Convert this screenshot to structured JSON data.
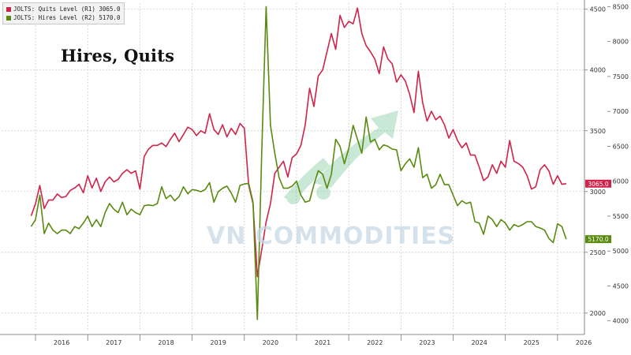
{
  "headline": "Hires, Quits",
  "watermark": "VN COMMODITIES",
  "legend": [
    {
      "label": "JOLTS: Quits Level (R1) 3065.0",
      "color": "#d0234a"
    },
    {
      "label": "JOLTS: Hires Level (R2) 5170.0",
      "color": "#5a8a10"
    }
  ],
  "chart_data": {
    "type": "line",
    "x_ticks": [
      "2016",
      "2017",
      "2018",
      "2019",
      "2020",
      "2021",
      "2022",
      "2023",
      "2024",
      "2025",
      "2026"
    ],
    "axes": {
      "r1": {
        "label": "R1",
        "ylim": [
          1850,
          4550
        ],
        "ticks": [
          2000,
          2500,
          3000,
          3500,
          4000,
          4500
        ]
      },
      "r2": {
        "label": "R2",
        "ylim": [
          3850,
          8550
        ],
        "ticks": [
          4000,
          4500,
          5000,
          5500,
          6000,
          6500,
          7000,
          7500,
          8000,
          8500
        ]
      }
    },
    "series": [
      {
        "name": "JOLTS: Quits Level",
        "axis": "r1",
        "color": "#d0234a",
        "last_value": 3065.0,
        "points": [
          [
            "2015-12",
            2800
          ],
          [
            "2016-01",
            2900
          ],
          [
            "2016-02",
            3050
          ],
          [
            "2016-03",
            2860
          ],
          [
            "2016-04",
            2930
          ],
          [
            "2016-05",
            2930
          ],
          [
            "2016-06",
            2980
          ],
          [
            "2016-07",
            2950
          ],
          [
            "2016-08",
            2960
          ],
          [
            "2016-09",
            3010
          ],
          [
            "2016-10",
            3030
          ],
          [
            "2016-11",
            3060
          ],
          [
            "2016-12",
            2990
          ],
          [
            "2017-01",
            3130
          ],
          [
            "2017-02",
            3030
          ],
          [
            "2017-03",
            3110
          ],
          [
            "2017-04",
            3000
          ],
          [
            "2017-05",
            3080
          ],
          [
            "2017-06",
            3120
          ],
          [
            "2017-07",
            3080
          ],
          [
            "2017-08",
            3100
          ],
          [
            "2017-09",
            3150
          ],
          [
            "2017-10",
            3180
          ],
          [
            "2017-11",
            3150
          ],
          [
            "2017-12",
            3170
          ],
          [
            "2018-01",
            3020
          ],
          [
            "2018-02",
            3290
          ],
          [
            "2018-03",
            3350
          ],
          [
            "2018-04",
            3380
          ],
          [
            "2018-05",
            3380
          ],
          [
            "2018-06",
            3400
          ],
          [
            "2018-07",
            3370
          ],
          [
            "2018-08",
            3430
          ],
          [
            "2018-09",
            3480
          ],
          [
            "2018-10",
            3410
          ],
          [
            "2018-11",
            3470
          ],
          [
            "2018-12",
            3530
          ],
          [
            "2019-01",
            3510
          ],
          [
            "2019-02",
            3460
          ],
          [
            "2019-03",
            3500
          ],
          [
            "2019-04",
            3480
          ],
          [
            "2019-05",
            3640
          ],
          [
            "2019-06",
            3510
          ],
          [
            "2019-07",
            3470
          ],
          [
            "2019-08",
            3550
          ],
          [
            "2019-09",
            3450
          ],
          [
            "2019-10",
            3520
          ],
          [
            "2019-11",
            3470
          ],
          [
            "2019-12",
            3560
          ],
          [
            "2020-01",
            3520
          ],
          [
            "2020-02",
            3050
          ],
          [
            "2020-03",
            2900
          ],
          [
            "2020-04",
            2300
          ],
          [
            "2020-05",
            2520
          ],
          [
            "2020-06",
            2750
          ],
          [
            "2020-07",
            2900
          ],
          [
            "2020-08",
            3150
          ],
          [
            "2020-09",
            3200
          ],
          [
            "2020-10",
            3250
          ],
          [
            "2020-11",
            3120
          ],
          [
            "2020-12",
            3280
          ],
          [
            "2021-01",
            3310
          ],
          [
            "2021-02",
            3380
          ],
          [
            "2021-03",
            3550
          ],
          [
            "2021-04",
            3850
          ],
          [
            "2021-05",
            3700
          ],
          [
            "2021-06",
            3950
          ],
          [
            "2021-07",
            4000
          ],
          [
            "2021-08",
            4150
          ],
          [
            "2021-09",
            4300
          ],
          [
            "2021-10",
            4170
          ],
          [
            "2021-11",
            4450
          ],
          [
            "2021-12",
            4350
          ],
          [
            "2022-01",
            4400
          ],
          [
            "2022-02",
            4380
          ],
          [
            "2022-03",
            4510
          ],
          [
            "2022-04",
            4300
          ],
          [
            "2022-05",
            4200
          ],
          [
            "2022-06",
            4150
          ],
          [
            "2022-07",
            4090
          ],
          [
            "2022-08",
            3970
          ],
          [
            "2022-09",
            4190
          ],
          [
            "2022-10",
            4090
          ],
          [
            "2022-11",
            4050
          ],
          [
            "2022-12",
            3900
          ],
          [
            "2023-01",
            3960
          ],
          [
            "2023-02",
            3910
          ],
          [
            "2023-03",
            3800
          ],
          [
            "2023-04",
            3650
          ],
          [
            "2023-05",
            3990
          ],
          [
            "2023-06",
            3730
          ],
          [
            "2023-07",
            3580
          ],
          [
            "2023-08",
            3660
          ],
          [
            "2023-09",
            3590
          ],
          [
            "2023-10",
            3620
          ],
          [
            "2023-11",
            3550
          ],
          [
            "2023-12",
            3440
          ],
          [
            "2024-01",
            3510
          ],
          [
            "2024-02",
            3420
          ],
          [
            "2024-03",
            3360
          ],
          [
            "2024-04",
            3400
          ],
          [
            "2024-05",
            3300
          ],
          [
            "2024-06",
            3300
          ],
          [
            "2024-07",
            3200
          ],
          [
            "2024-08",
            3090
          ],
          [
            "2024-09",
            3120
          ],
          [
            "2024-10",
            3220
          ],
          [
            "2024-11",
            3150
          ],
          [
            "2024-12",
            3250
          ],
          [
            "2025-01",
            3200
          ],
          [
            "2025-02",
            3420
          ],
          [
            "2025-03",
            3250
          ],
          [
            "2025-04",
            3230
          ],
          [
            "2025-05",
            3200
          ],
          [
            "2025-06",
            3130
          ],
          [
            "2025-07",
            3020
          ],
          [
            "2025-08",
            3040
          ],
          [
            "2025-09",
            3180
          ],
          [
            "2025-10",
            3220
          ],
          [
            "2025-11",
            3170
          ],
          [
            "2025-12",
            3060
          ],
          [
            "2026-01",
            3130
          ],
          [
            "2026-02",
            3060
          ],
          [
            "2026-03",
            3065
          ]
        ]
      },
      {
        "name": "JOLTS: Hires Level",
        "axis": "r2",
        "color": "#5a8a10",
        "last_value": 5170.0,
        "points": [
          [
            "2015-12",
            5350
          ],
          [
            "2016-01",
            5450
          ],
          [
            "2016-02",
            5800
          ],
          [
            "2016-03",
            5250
          ],
          [
            "2016-04",
            5400
          ],
          [
            "2016-05",
            5300
          ],
          [
            "2016-06",
            5250
          ],
          [
            "2016-07",
            5300
          ],
          [
            "2016-08",
            5300
          ],
          [
            "2016-09",
            5250
          ],
          [
            "2016-10",
            5350
          ],
          [
            "2016-11",
            5320
          ],
          [
            "2016-12",
            5400
          ],
          [
            "2017-01",
            5500
          ],
          [
            "2017-02",
            5350
          ],
          [
            "2017-03",
            5450
          ],
          [
            "2017-04",
            5350
          ],
          [
            "2017-05",
            5550
          ],
          [
            "2017-06",
            5680
          ],
          [
            "2017-07",
            5600
          ],
          [
            "2017-08",
            5550
          ],
          [
            "2017-09",
            5700
          ],
          [
            "2017-10",
            5520
          ],
          [
            "2017-11",
            5600
          ],
          [
            "2017-12",
            5550
          ],
          [
            "2018-01",
            5520
          ],
          [
            "2018-02",
            5650
          ],
          [
            "2018-03",
            5660
          ],
          [
            "2018-04",
            5650
          ],
          [
            "2018-05",
            5680
          ],
          [
            "2018-06",
            5920
          ],
          [
            "2018-07",
            5750
          ],
          [
            "2018-08",
            5800
          ],
          [
            "2018-09",
            5720
          ],
          [
            "2018-10",
            5780
          ],
          [
            "2018-11",
            5920
          ],
          [
            "2018-12",
            5820
          ],
          [
            "2019-01",
            5880
          ],
          [
            "2019-02",
            5870
          ],
          [
            "2019-03",
            5850
          ],
          [
            "2019-04",
            5880
          ],
          [
            "2019-05",
            5980
          ],
          [
            "2019-06",
            5700
          ],
          [
            "2019-07",
            5850
          ],
          [
            "2019-08",
            5900
          ],
          [
            "2019-09",
            5930
          ],
          [
            "2019-10",
            5830
          ],
          [
            "2019-11",
            5700
          ],
          [
            "2019-12",
            5940
          ],
          [
            "2020-01",
            5960
          ],
          [
            "2020-02",
            5970
          ],
          [
            "2020-03",
            5700
          ],
          [
            "2020-04",
            4020
          ],
          [
            "2020-05",
            6400
          ],
          [
            "2020-06",
            8500
          ],
          [
            "2020-07",
            6800
          ],
          [
            "2020-08",
            6400
          ],
          [
            "2020-09",
            6050
          ],
          [
            "2020-10",
            5900
          ],
          [
            "2020-11",
            5900
          ],
          [
            "2020-12",
            5930
          ],
          [
            "2021-01",
            6000
          ],
          [
            "2021-02",
            5800
          ],
          [
            "2021-03",
            5700
          ],
          [
            "2021-04",
            5720
          ],
          [
            "2021-05",
            5950
          ],
          [
            "2021-06",
            6150
          ],
          [
            "2021-07",
            6100
          ],
          [
            "2021-08",
            5900
          ],
          [
            "2021-09",
            6100
          ],
          [
            "2021-10",
            6600
          ],
          [
            "2021-11",
            6500
          ],
          [
            "2021-12",
            6250
          ],
          [
            "2022-01",
            6470
          ],
          [
            "2022-02",
            6800
          ],
          [
            "2022-03",
            6600
          ],
          [
            "2022-04",
            6400
          ],
          [
            "2022-05",
            6920
          ],
          [
            "2022-06",
            6560
          ],
          [
            "2022-07",
            6600
          ],
          [
            "2022-08",
            6450
          ],
          [
            "2022-09",
            6520
          ],
          [
            "2022-10",
            6500
          ],
          [
            "2022-11",
            6460
          ],
          [
            "2022-12",
            6450
          ],
          [
            "2023-01",
            6150
          ],
          [
            "2023-02",
            6250
          ],
          [
            "2023-03",
            6320
          ],
          [
            "2023-04",
            6200
          ],
          [
            "2023-05",
            6480
          ],
          [
            "2023-06",
            6050
          ],
          [
            "2023-07",
            6100
          ],
          [
            "2023-08",
            5900
          ],
          [
            "2023-09",
            5950
          ],
          [
            "2023-10",
            6100
          ],
          [
            "2023-11",
            5950
          ],
          [
            "2023-12",
            5950
          ],
          [
            "2024-01",
            5800
          ],
          [
            "2024-02",
            5650
          ],
          [
            "2024-03",
            5720
          ],
          [
            "2024-04",
            5680
          ],
          [
            "2024-05",
            5700
          ],
          [
            "2024-06",
            5420
          ],
          [
            "2024-07",
            5400
          ],
          [
            "2024-08",
            5240
          ],
          [
            "2024-09",
            5500
          ],
          [
            "2024-10",
            5450
          ],
          [
            "2024-11",
            5350
          ],
          [
            "2024-12",
            5450
          ],
          [
            "2025-01",
            5400
          ],
          [
            "2025-02",
            5300
          ],
          [
            "2025-03",
            5380
          ],
          [
            "2025-04",
            5350
          ],
          [
            "2025-05",
            5380
          ],
          [
            "2025-06",
            5420
          ],
          [
            "2025-07",
            5420
          ],
          [
            "2025-08",
            5350
          ],
          [
            "2025-09",
            5330
          ],
          [
            "2025-10",
            5300
          ],
          [
            "2025-11",
            5180
          ],
          [
            "2025-12",
            5120
          ],
          [
            "2026-01",
            5390
          ],
          [
            "2026-02",
            5350
          ],
          [
            "2026-03",
            5170
          ]
        ]
      }
    ],
    "value_tags": [
      {
        "series": 0,
        "text": "3065.0",
        "bg": "#d0234a"
      },
      {
        "series": 1,
        "text": "5170.0",
        "bg": "#5a8a10"
      }
    ]
  }
}
